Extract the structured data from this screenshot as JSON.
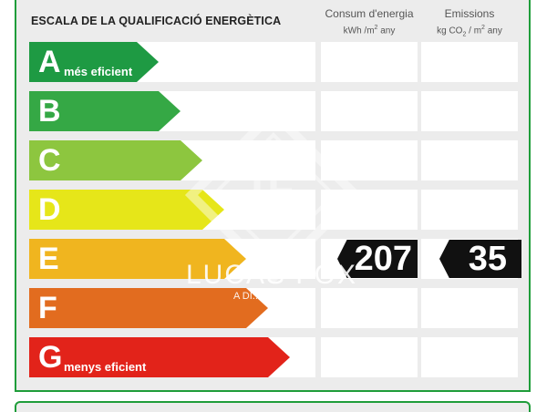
{
  "title": "ESCALA DE LA QUALIFICACIÓ ENERGÈTICA",
  "columns": {
    "consumption": {
      "label": "Consum d'energia",
      "unit_prefix": "kWh /m",
      "unit_exp": "2",
      "unit_suffix": " any"
    },
    "emissions": {
      "label": "Emissions",
      "unit_prefix": "kg CO",
      "unit_sub": "2",
      "unit_mid": " / m",
      "unit_exp": "2",
      "unit_suffix": " any"
    }
  },
  "rows": [
    {
      "letter": "A",
      "label": "més eficient",
      "color": "#1e9a43"
    },
    {
      "letter": "B",
      "label": "",
      "color": "#35a845"
    },
    {
      "letter": "C",
      "label": "",
      "color": "#8dc63f"
    },
    {
      "letter": "D",
      "label": "",
      "color": "#e6e619"
    },
    {
      "letter": "E",
      "label": "",
      "color": "#f0b51f"
    },
    {
      "letter": "F",
      "label": "",
      "color": "#e26c1f"
    },
    {
      "letter": "G",
      "label": "menys eficient",
      "color": "#e2231a"
    }
  ],
  "rating": {
    "letter": "E",
    "consumption_value": "207",
    "emissions_value": "35"
  },
  "watermark": {
    "brand": "LUCAS FOX",
    "tagline": "A DI..."
  }
}
